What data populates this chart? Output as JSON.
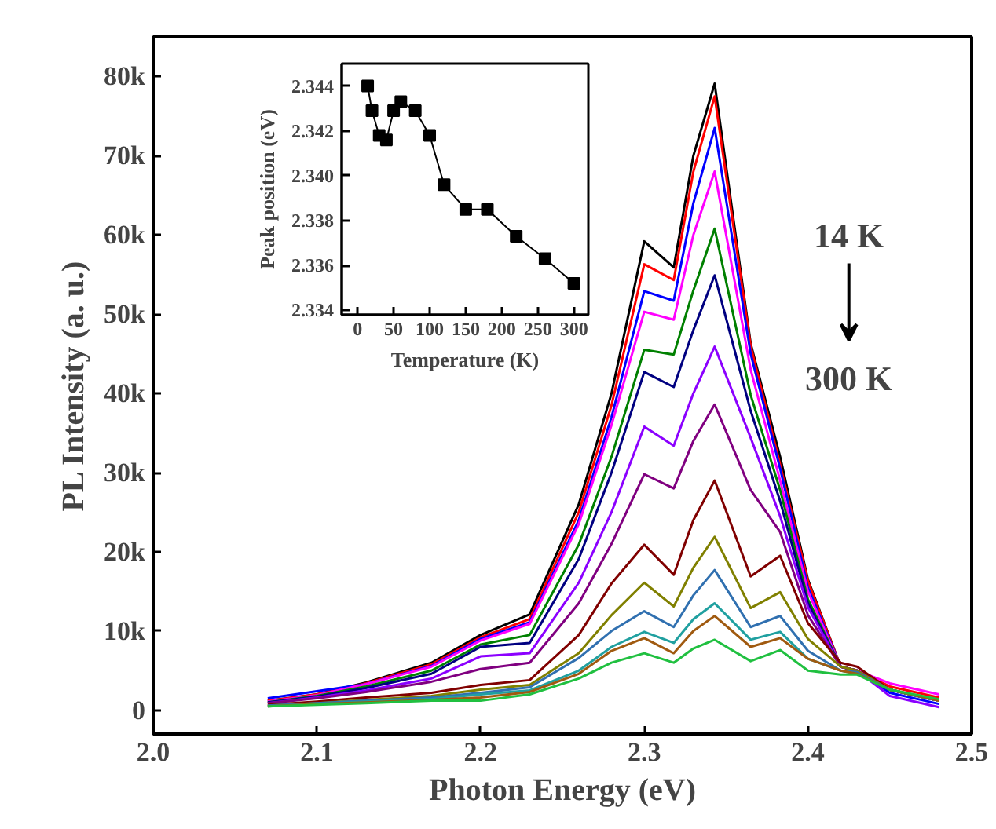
{
  "chart_data": [
    {
      "type": "line",
      "xlabel": "Photon Energy (eV)",
      "ylabel": "PL Intensity (a. u.)",
      "x": [
        2.07,
        2.1,
        2.13,
        2.17,
        2.2,
        2.23,
        2.26,
        2.28,
        2.3,
        2.318,
        2.33,
        2.343,
        2.365,
        2.383,
        2.4,
        2.42,
        2.43,
        2.45,
        2.48
      ],
      "xlim": [
        2.0,
        2.5
      ],
      "xticks": [
        {
          "value": 2.0,
          "label": "2.0"
        },
        {
          "value": 2.1,
          "label": "2.1"
        },
        {
          "value": 2.2,
          "label": "2.2"
        },
        {
          "value": 2.3,
          "label": "2.3"
        },
        {
          "value": 2.4,
          "label": "2.4"
        },
        {
          "value": 2.5,
          "label": "2.5"
        }
      ],
      "ylim": [
        -3000,
        85000
      ],
      "yticks": [
        0,
        {
          "value": 10000,
          "label": "10k"
        },
        {
          "value": 20000,
          "label": "20k"
        },
        {
          "value": 30000,
          "label": "30k"
        },
        {
          "value": 40000,
          "label": "40k"
        },
        {
          "value": 50000,
          "label": "50k"
        },
        {
          "value": 60000,
          "label": "60k"
        },
        {
          "value": 70000,
          "label": "70k"
        },
        {
          "value": 80000,
          "label": "80k"
        }
      ],
      "grid": false,
      "marker": "none",
      "line_style": "solid",
      "annotations": [
        "14 K",
        "300 K"
      ],
      "series": [
        {
          "color": "#000000",
          "values": [
            1200,
            2000,
            3500,
            6000,
            9500,
            12100,
            26000,
            40000,
            59200,
            55900,
            70000,
            79100,
            46300,
            32000,
            16500,
            5500,
            5000,
            2600,
            1200
          ]
        },
        {
          "color": "#ff0000",
          "values": [
            1200,
            2000,
            3400,
            5800,
            9200,
            11500,
            25000,
            38500,
            56300,
            54300,
            68000,
            77500,
            46000,
            31000,
            16300,
            5500,
            5000,
            3000,
            1600
          ]
        },
        {
          "color": "#0000ff",
          "values": [
            1500,
            2400,
            3300,
            5600,
            9000,
            11100,
            24000,
            37000,
            52900,
            51700,
            64000,
            73500,
            45000,
            30500,
            15500,
            5500,
            5000,
            2200,
            800
          ]
        },
        {
          "color": "#ff00ff",
          "values": [
            1100,
            1900,
            3300,
            5500,
            8800,
            10900,
            23500,
            36000,
            50300,
            49300,
            60000,
            68000,
            43000,
            29000,
            15000,
            5500,
            5000,
            3400,
            2000
          ]
        },
        {
          "color": "#008000",
          "values": [
            1000,
            1800,
            3000,
            5000,
            8300,
            9500,
            20900,
            32000,
            45500,
            44900,
            53000,
            60800,
            39800,
            27800,
            14000,
            5500,
            5000,
            2600,
            1200
          ]
        },
        {
          "color": "#000080",
          "values": [
            1000,
            1700,
            2800,
            4600,
            8000,
            8500,
            19100,
            30000,
            42700,
            40800,
            48000,
            54900,
            37800,
            26400,
            13500,
            5500,
            5000,
            2600,
            1200
          ]
        },
        {
          "color": "#8b00ff",
          "values": [
            900,
            1600,
            2500,
            4000,
            6800,
            7200,
            16100,
            25000,
            35800,
            33400,
            40000,
            45900,
            34400,
            24500,
            13000,
            5500,
            5000,
            1800,
            400
          ]
        },
        {
          "color": "#800080",
          "values": [
            900,
            1500,
            2300,
            3600,
            5200,
            6000,
            13500,
            21000,
            29800,
            28000,
            34000,
            38600,
            27800,
            22500,
            12000,
            5500,
            5000,
            2600,
            1200
          ]
        },
        {
          "color": "#800000",
          "values": [
            700,
            1100,
            1600,
            2200,
            3200,
            3800,
            9500,
            16000,
            20900,
            17100,
            24000,
            29000,
            16900,
            19500,
            11000,
            6000,
            5500,
            2600,
            1200
          ]
        },
        {
          "color": "#808000",
          "values": [
            600,
            900,
            1300,
            1800,
            2600,
            3200,
            7200,
            12000,
            16100,
            13100,
            18000,
            21900,
            12900,
            14900,
            9000,
            5500,
            5000,
            2600,
            1200
          ]
        },
        {
          "color": "#3070b0",
          "values": [
            600,
            900,
            1200,
            1600,
            2200,
            2900,
            6600,
            10000,
            12500,
            10500,
            14500,
            17700,
            10500,
            11900,
            7500,
            5000,
            4800,
            2600,
            1200
          ]
        },
        {
          "color": "#20a0a0",
          "values": [
            500,
            800,
            1100,
            1400,
            2000,
            2500,
            5000,
            8000,
            9900,
            8500,
            11500,
            13500,
            8900,
            9900,
            6500,
            5000,
            4600,
            2600,
            1200
          ]
        },
        {
          "color": "#a05a10",
          "values": [
            500,
            800,
            1000,
            1300,
            1600,
            2300,
            4600,
            7500,
            9100,
            7200,
            10000,
            11900,
            8000,
            9100,
            6500,
            5000,
            4600,
            2600,
            1200
          ]
        },
        {
          "color": "#20c040",
          "values": [
            500,
            700,
            900,
            1200,
            1200,
            2000,
            4000,
            6000,
            7200,
            6000,
            7800,
            8900,
            6200,
            7600,
            5000,
            4500,
            4500,
            2600,
            1400
          ]
        }
      ]
    },
    {
      "type": "line",
      "xlabel": "Temperature (K)",
      "ylabel": "Peak position (eV)",
      "x": [
        14,
        20,
        30,
        40,
        50,
        60,
        80,
        100,
        120,
        150,
        180,
        220,
        260,
        300
      ],
      "xlim": [
        -22,
        320
      ],
      "xticks": [
        0,
        50,
        100,
        150,
        200,
        250,
        300
      ],
      "ylim": [
        2.3338,
        2.345
      ],
      "yticks": [
        {
          "value": 2.334,
          "label": "2.334"
        },
        {
          "value": 2.336,
          "label": "2.336"
        },
        {
          "value": 2.338,
          "label": "2.338"
        },
        {
          "value": 2.34,
          "label": "2.340"
        },
        {
          "value": 2.342,
          "label": "2.342"
        },
        {
          "value": 2.344,
          "label": "2.344"
        }
      ],
      "grid": false,
      "marker": "square",
      "line_style": "solid",
      "series": [
        {
          "color": "#000000",
          "values": [
            2.344,
            2.3429,
            2.3418,
            2.3416,
            2.3429,
            2.3433,
            2.3429,
            2.3418,
            2.3396,
            2.3385,
            2.3385,
            2.3373,
            2.3363,
            2.3352
          ]
        }
      ]
    }
  ]
}
